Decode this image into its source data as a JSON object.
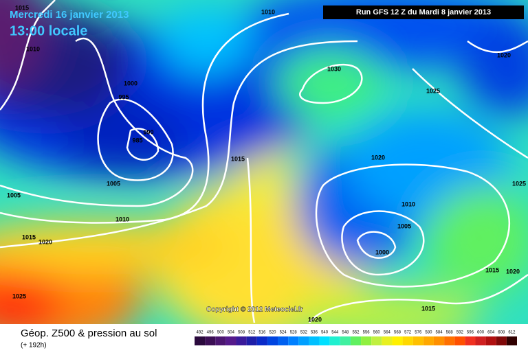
{
  "header": {
    "date": "Mercredi 16 janvier 2013",
    "time": "13:00 locale",
    "run": "Run GFS 12 Z du Mardi 8 janvier 2013"
  },
  "isobar_labels": [
    "1015",
    "1010",
    "1010",
    "1000",
    "995",
    "990",
    "985",
    "1005",
    "1005",
    "1010",
    "1015",
    "1020",
    "1025",
    "1015",
    "1030",
    "1025",
    "1020",
    "1020",
    "1025",
    "1010",
    "1005",
    "1000",
    "1015",
    "1020",
    "1015",
    "1020"
  ],
  "copyright": "Copyright © 2012 Meteociel.fr",
  "footer": {
    "title": "Géop. Z500 & pression au sol",
    "lead": "(+ 192h)"
  },
  "legend": {
    "values": [
      492,
      496,
      500,
      504,
      508,
      512,
      516,
      520,
      524,
      528,
      532,
      536,
      540,
      544,
      548,
      552,
      556,
      560,
      564,
      568,
      572,
      576,
      580,
      584,
      588,
      592,
      596,
      600,
      604,
      608,
      612
    ],
    "colors": [
      "#2b0a3d",
      "#3c0f55",
      "#4b1670",
      "#551a8b",
      "#3a1a9a",
      "#1e1ea8",
      "#0a2ac8",
      "#0044e0",
      "#0060f0",
      "#0080ff",
      "#00a0ff",
      "#00c0ff",
      "#00e0ff",
      "#20f0d0",
      "#40f0a0",
      "#60f060",
      "#90f040",
      "#c0f040",
      "#e8f020",
      "#fff000",
      "#ffd800",
      "#ffc000",
      "#ffa800",
      "#ff9000",
      "#ff7000",
      "#ff5000",
      "#f03020",
      "#d02020",
      "#b01010",
      "#800808",
      "#300000"
    ]
  }
}
